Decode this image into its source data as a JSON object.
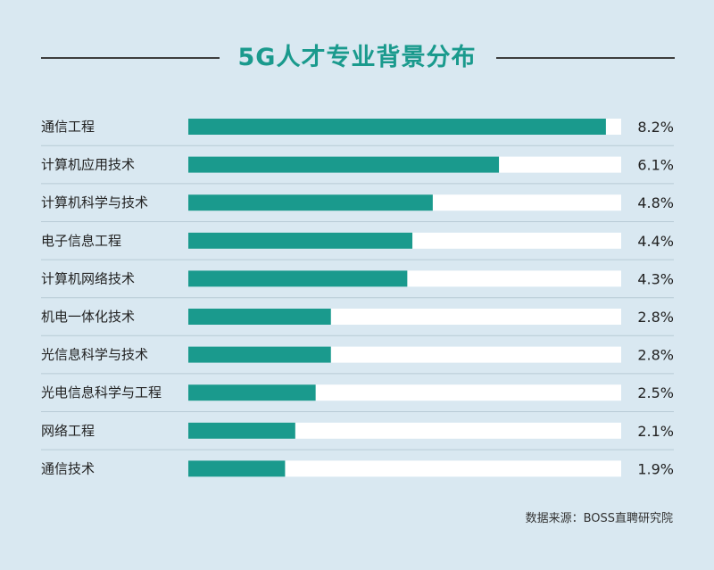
{
  "title": "5G人才专业背景分布",
  "source": "数据来源：BOSS直聘研究院",
  "colors": {
    "background": "#d9e8f1",
    "bar": "#1a9a8d",
    "track": "#ffffff",
    "row_divider": "#b8cbd6",
    "title": "#1a9a8d",
    "text": "#222222"
  },
  "chart_data": {
    "type": "bar",
    "orientation": "horizontal",
    "categories": [
      "通信工程",
      "计算机应用技术",
      "计算机科学与技术",
      "电子信息工程",
      "计算机网络技术",
      "机电一体化技术",
      "光信息科学与技术",
      "光电信息科学与工程",
      "网络工程",
      "通信技术"
    ],
    "values": [
      8.2,
      6.1,
      4.8,
      4.4,
      4.3,
      2.8,
      2.8,
      2.5,
      2.1,
      1.9
    ],
    "value_labels": [
      "8.2%",
      "6.1%",
      "4.8%",
      "4.4%",
      "4.3%",
      "2.8%",
      "2.8%",
      "2.5%",
      "2.1%",
      "1.9%"
    ],
    "xlim": [
      0,
      8.5
    ],
    "grid": false,
    "legend": "none"
  }
}
